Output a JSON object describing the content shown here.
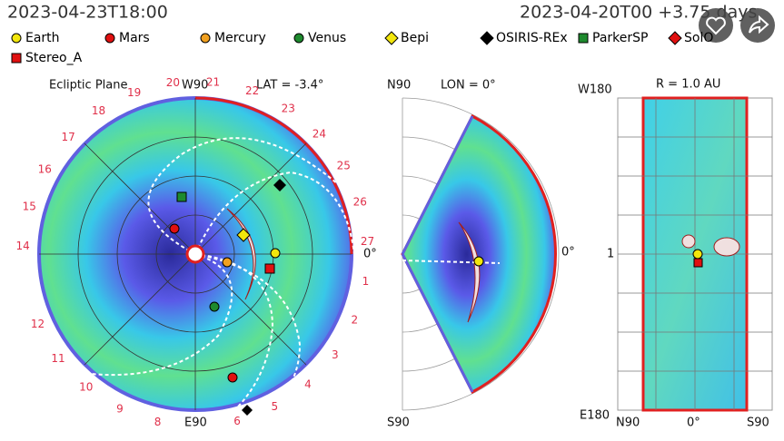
{
  "header": {
    "date_left": "2023-04-23T18:00",
    "date_right": "2023-04-20T00 +3.75 days"
  },
  "legend": [
    {
      "label": "Earth",
      "color": "#f2e60c",
      "shape": "circle"
    },
    {
      "label": "Mars",
      "color": "#e01010",
      "shape": "circle"
    },
    {
      "label": "Mercury",
      "color": "#f0a020",
      "shape": "circle"
    },
    {
      "label": "Venus",
      "color": "#1e8a2e",
      "shape": "circle"
    },
    {
      "label": "Bepi",
      "color": "#f2e60c",
      "shape": "diamond"
    },
    {
      "label": "OSIRIS-REx",
      "color": "#000000",
      "shape": "diamond"
    },
    {
      "label": "ParkerSP",
      "color": "#1e8a2e",
      "shape": "square"
    },
    {
      "label": "SolO",
      "color": "#e01010",
      "shape": "diamond"
    },
    {
      "label": "Stereo_A",
      "color": "#e01010",
      "shape": "square"
    }
  ],
  "ecliptic": {
    "title": "Ecliptic Plane",
    "top": "W90",
    "lat": "LAT = -3.4°",
    "bottom": "E90",
    "right": "0°",
    "carrington_labels": [
      "1",
      "2",
      "3",
      "4",
      "5",
      "6",
      null,
      "8",
      "9",
      "10",
      "11",
      "12",
      null,
      "14",
      "15",
      "16",
      "17",
      "18",
      "19",
      "20",
      "21",
      "22",
      "23",
      "24",
      "25",
      "26",
      "27"
    ]
  },
  "meridional": {
    "top": "N90",
    "lon": "LON = 0°",
    "bottom": "S90",
    "right": "0°"
  },
  "radial": {
    "top": "W180",
    "r": "R = 1.0 AU",
    "bottom": "E180",
    "left_mid": "1",
    "x_left": "N90",
    "x_mid": "0°",
    "x_right": "S90"
  }
}
